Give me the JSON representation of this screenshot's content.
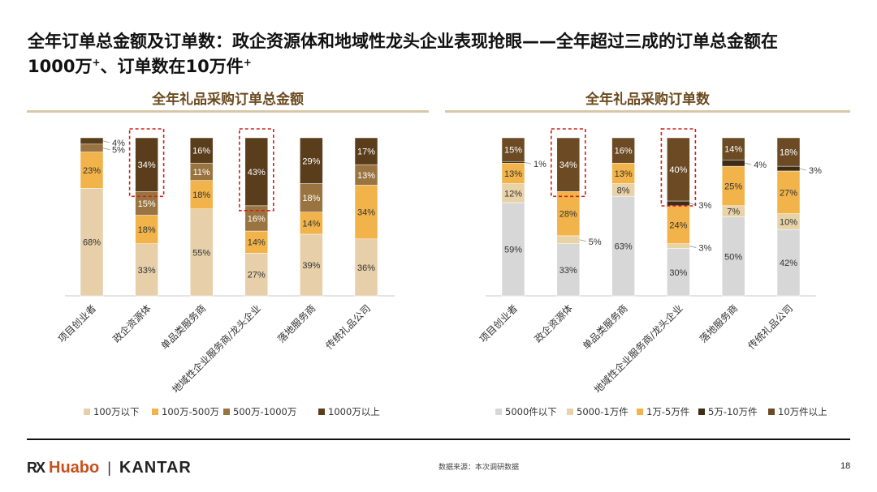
{
  "slide": {
    "title_line1": "全年订单总金额及订单数：政企资源体和地域性龙头企业表现抢眼——全年超过三成的订单总金额在",
    "title_line2_a": "1000万",
    "title_line2_sup1": "+",
    "title_line2_b": "、订单数在10万件",
    "title_line2_sup2": "+",
    "source": "数据来源：本次调研数据",
    "page_number": "18"
  },
  "footer": {
    "brand_mark": "RX",
    "brand_name": "Huabo",
    "separator": "|",
    "partner": "KANTAR"
  },
  "colors": {
    "title_brown": "#6b4a1e",
    "highlight": "#d0201b"
  },
  "chart_data": [
    {
      "type": "bar",
      "stacked": true,
      "percent": true,
      "title": "全年礼品采购订单总金额",
      "categories": [
        "项目创业者",
        "政企资源体",
        "单品类服务商",
        "地域性企业服务商/龙头企业",
        "落地服务商",
        "传统礼品公司"
      ],
      "series": [
        {
          "name": "100万以下",
          "color": "#e6cfa9",
          "values": [
            68,
            33,
            55,
            27,
            39,
            36
          ]
        },
        {
          "name": "100万-500万",
          "color": "#f1b34a",
          "values": [
            23,
            18,
            18,
            14,
            14,
            34
          ]
        },
        {
          "name": "500万-1000万",
          "color": "#9a7440",
          "values": [
            5,
            15,
            11,
            16,
            18,
            13
          ]
        },
        {
          "name": "1000万以上",
          "color": "#5a3d1b",
          "values": [
            4,
            34,
            16,
            43,
            29,
            17
          ]
        }
      ],
      "highlighted_categories": [
        "政企资源体",
        "地域性企业服务商/龙头企业"
      ],
      "ylim": [
        0,
        100
      ],
      "legend": "bottom"
    },
    {
      "type": "bar",
      "stacked": true,
      "percent": true,
      "title": "全年礼品采购订单数",
      "categories": [
        "项目创业者",
        "政企资源体",
        "单品类服务商",
        "地域性企业服务商/龙头企业",
        "落地服务商",
        "传统礼品公司"
      ],
      "series": [
        {
          "name": "5000件以下",
          "color": "#d7d7d7",
          "values": [
            59,
            33,
            63,
            30,
            50,
            42
          ]
        },
        {
          "name": "5000-1万件",
          "color": "#e8d2a8",
          "values": [
            12,
            5,
            8,
            3,
            7,
            10
          ]
        },
        {
          "name": "1万-5万件",
          "color": "#f1b34a",
          "values": [
            13,
            28,
            13,
            24,
            25,
            27
          ]
        },
        {
          "name": "5万-10万件",
          "color": "#3e2c14",
          "values": [
            1,
            0,
            0,
            3,
            4,
            3
          ]
        },
        {
          "name": "10万件以上",
          "color": "#6b4a24",
          "values": [
            15,
            34,
            16,
            40,
            14,
            18
          ]
        }
      ],
      "highlighted_categories": [
        "政企资源体",
        "地域性企业服务商/龙头企业"
      ],
      "ylim": [
        0,
        100
      ],
      "legend": "bottom"
    }
  ]
}
